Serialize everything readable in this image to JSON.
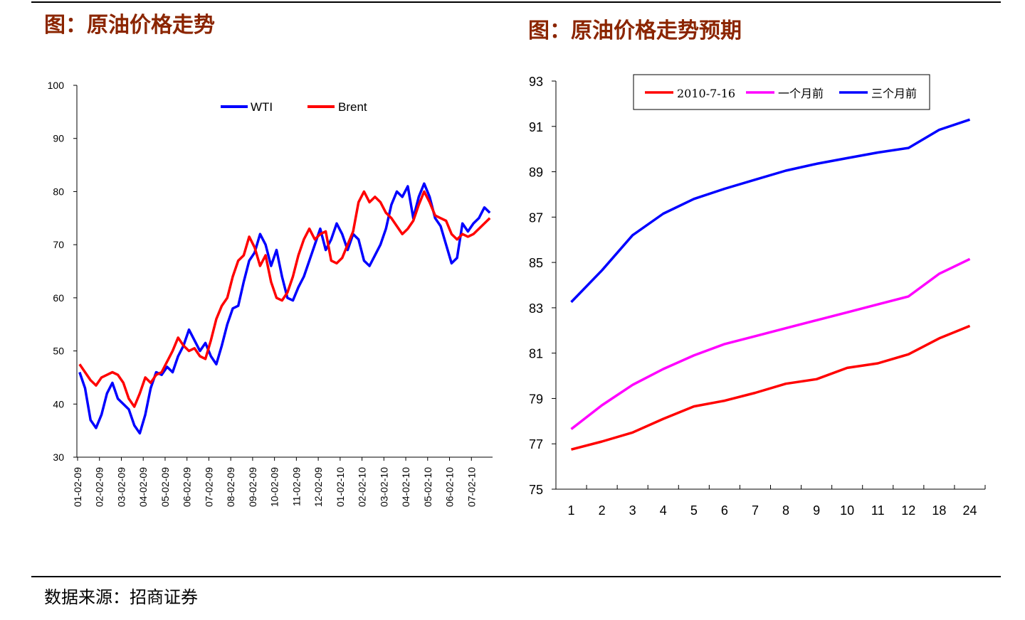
{
  "titles": {
    "left": "图：原油价格走势",
    "right": "图：原油价格走势预期"
  },
  "source": "数据来源：招商证券",
  "chart_data": [
    {
      "type": "line",
      "ylim": [
        30,
        100
      ],
      "yticks": [
        30,
        40,
        50,
        60,
        70,
        80,
        90,
        100
      ],
      "xlabels": [
        "01-02-09",
        "02-02-09",
        "03-02-09",
        "04-02-09",
        "05-02-09",
        "06-02-09",
        "07-02-09",
        "08-02-09",
        "09-02-09",
        "10-02-09",
        "11-02-09",
        "12-02-09",
        "01-02-10",
        "02-02-10",
        "03-02-10",
        "04-02-10",
        "05-02-10",
        "06-02-10",
        "07-02-10"
      ],
      "x_count": 76,
      "legend_position": "top-center",
      "series": [
        {
          "name": "WTI",
          "color": "#0000ff",
          "values": [
            46,
            43,
            37,
            35.5,
            38,
            42,
            44,
            41,
            40,
            39,
            36,
            34.5,
            38,
            43,
            46,
            45.5,
            47,
            46,
            49,
            51,
            54,
            52,
            50,
            51.5,
            49,
            47.5,
            51,
            55,
            58,
            58.5,
            63,
            67,
            68.5,
            72,
            70,
            66,
            69,
            64,
            60,
            59.5,
            62,
            64,
            67,
            70,
            73,
            69,
            71,
            74,
            72,
            69,
            72,
            71,
            67,
            66,
            68,
            70,
            73,
            77.5,
            80,
            79,
            81,
            75,
            79,
            81.5,
            79,
            75,
            73.5,
            70,
            66.5,
            67.5,
            74,
            72.5,
            74,
            75,
            77,
            76
          ]
        },
        {
          "name": "Brent",
          "color": "#ff0000",
          "values": [
            47.5,
            46,
            44.5,
            43.5,
            45,
            45.5,
            46,
            45.5,
            44,
            41,
            39.5,
            42,
            45,
            44,
            45.5,
            46,
            48,
            50,
            52.5,
            51,
            50,
            50.5,
            49,
            48.5,
            52,
            56,
            58.5,
            60,
            64,
            67,
            68,
            71.5,
            69.5,
            66,
            68,
            63,
            60,
            59.5,
            61,
            64,
            68,
            71,
            73,
            71,
            72,
            72.5,
            67,
            66.5,
            67.5,
            70,
            72.5,
            78,
            80,
            78,
            79,
            78,
            76,
            75,
            73.5,
            72,
            73,
            74.5,
            77.5,
            80,
            78,
            75.5,
            75,
            74.5,
            72,
            71,
            72,
            71.5,
            72,
            73,
            74,
            75
          ]
        }
      ]
    },
    {
      "type": "line",
      "categories": [
        "1",
        "2",
        "3",
        "4",
        "5",
        "6",
        "7",
        "8",
        "9",
        "10",
        "11",
        "12",
        "18",
        "24"
      ],
      "ylim": [
        75,
        93
      ],
      "yticks": [
        75,
        77,
        79,
        81,
        83,
        85,
        87,
        89,
        91,
        93
      ],
      "legend_position": "top-center",
      "series": [
        {
          "name": "2010-7-16",
          "color": "#ff0000",
          "values": [
            76.75,
            77.1,
            77.5,
            78.1,
            78.65,
            78.9,
            79.25,
            79.65,
            79.85,
            80.35,
            80.55,
            80.95,
            81.65,
            82.2
          ]
        },
        {
          "name": "一个月前",
          "color": "#ff00ff",
          "values": [
            77.65,
            78.7,
            79.6,
            80.3,
            80.9,
            81.4,
            81.75,
            82.1,
            82.45,
            82.8,
            83.15,
            83.5,
            84.5,
            85.15
          ]
        },
        {
          "name": "三个月前",
          "color": "#0000ff",
          "values": [
            83.25,
            84.65,
            86.2,
            87.15,
            87.8,
            88.25,
            88.65,
            89.05,
            89.35,
            89.6,
            89.85,
            90.05,
            90.85,
            91.3
          ]
        }
      ]
    }
  ]
}
